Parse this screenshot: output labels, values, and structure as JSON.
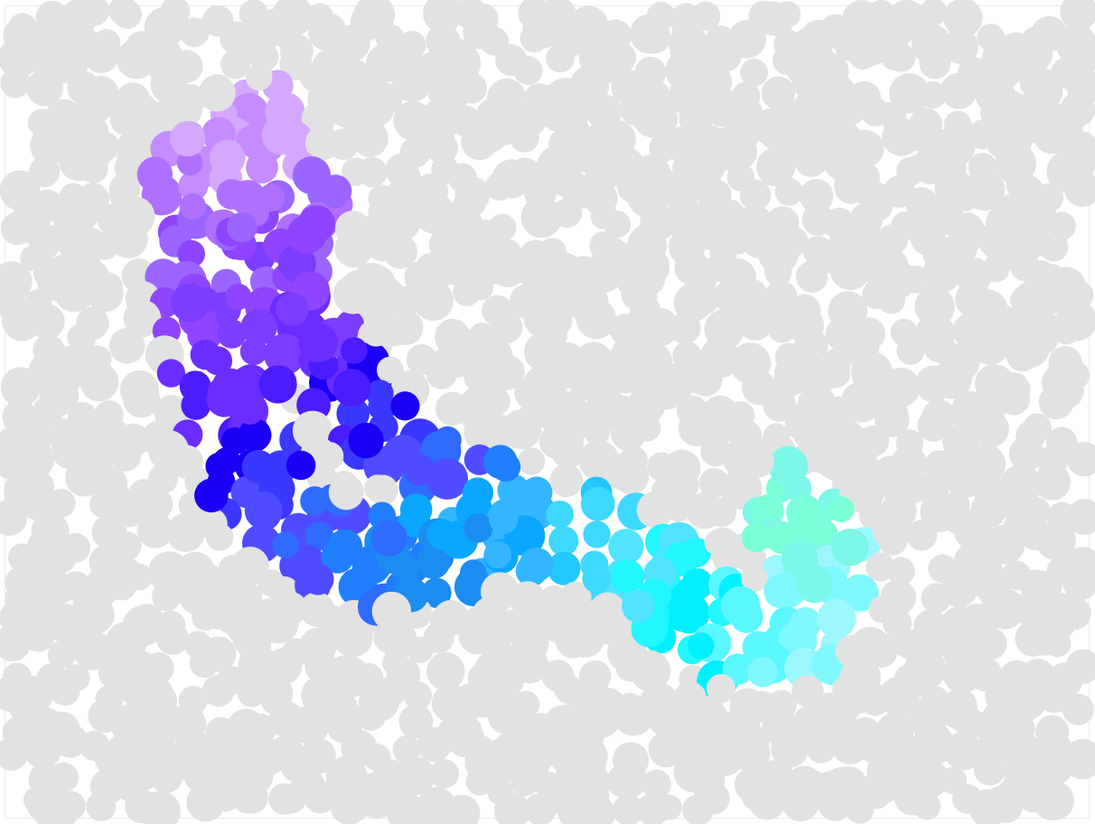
{
  "image": {
    "kind": "dot-plate",
    "description_colors": {
      "background": "#ffffff",
      "frame": "#ececec",
      "camouflage_dot": "#e2e2e2"
    },
    "figure": {
      "shape": "L-shaped curved band (hook)",
      "gradient_palette": [
        "#d4a8ff",
        "#c48cff",
        "#b070ff",
        "#9a66ff",
        "#8f45ff",
        "#7b3dff",
        "#6a2dff",
        "#4a1cff",
        "#1a00f5",
        "#3a38ff",
        "#4f4cff",
        "#2f6bff",
        "#1f7fff",
        "#1c8df0",
        "#0aa6ff",
        "#33b6ff",
        "#22c8ff",
        "#3fd8ff",
        "#52e4ff",
        "#22f6ff",
        "#00f0ff",
        "#5bf7ff",
        "#7ff8ff",
        "#9cf7ff",
        "#7cf7e8",
        "#7affd8"
      ]
    }
  }
}
